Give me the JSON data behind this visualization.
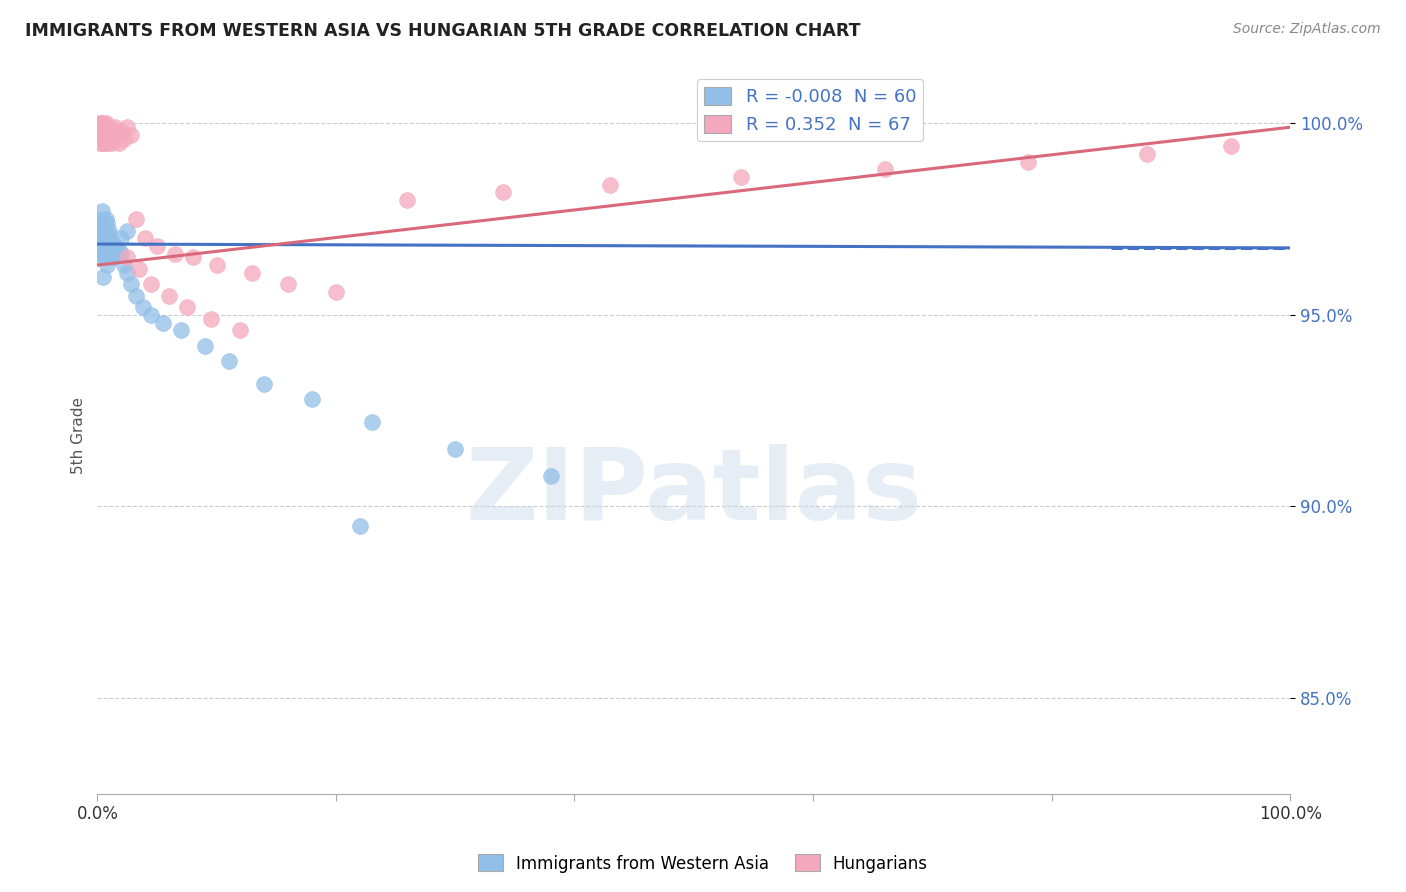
{
  "title": "IMMIGRANTS FROM WESTERN ASIA VS HUNGARIAN 5TH GRADE CORRELATION CHART",
  "source": "Source: ZipAtlas.com",
  "ylabel": "5th Grade",
  "watermark": "ZIPatlas",
  "blue_R": -0.008,
  "blue_N": 60,
  "pink_R": 0.352,
  "pink_N": 67,
  "blue_label": "Immigrants from Western Asia",
  "pink_label": "Hungarians",
  "blue_color": "#92bfe8",
  "pink_color": "#f4a8bd",
  "blue_line_color": "#4472c4",
  "pink_line_color": "#d9687a",
  "xlim": [
    0.0,
    1.0
  ],
  "ylim": [
    0.825,
    1.012
  ],
  "blue_scatter_x": [
    0.001,
    0.001,
    0.002,
    0.002,
    0.002,
    0.003,
    0.003,
    0.003,
    0.004,
    0.004,
    0.004,
    0.004,
    0.005,
    0.005,
    0.005,
    0.006,
    0.006,
    0.006,
    0.007,
    0.007,
    0.007,
    0.007,
    0.008,
    0.008,
    0.008,
    0.009,
    0.009,
    0.01,
    0.01,
    0.011,
    0.011,
    0.012,
    0.013,
    0.014,
    0.015,
    0.016,
    0.018,
    0.02,
    0.022,
    0.025,
    0.028,
    0.032,
    0.038,
    0.045,
    0.055,
    0.07,
    0.09,
    0.11,
    0.14,
    0.18,
    0.23,
    0.3,
    0.22,
    0.38,
    0.005,
    0.008,
    0.01,
    0.015,
    0.02,
    0.025
  ],
  "blue_scatter_y": [
    0.975,
    0.972,
    0.97,
    0.967,
    0.974,
    0.968,
    0.972,
    0.965,
    0.971,
    0.968,
    0.974,
    0.977,
    0.966,
    0.97,
    0.973,
    0.965,
    0.968,
    0.972,
    0.966,
    0.97,
    0.973,
    0.975,
    0.967,
    0.971,
    0.974,
    0.968,
    0.971,
    0.969,
    0.972,
    0.966,
    0.97,
    0.968,
    0.966,
    0.965,
    0.968,
    0.966,
    0.967,
    0.966,
    0.963,
    0.961,
    0.958,
    0.955,
    0.952,
    0.95,
    0.948,
    0.946,
    0.942,
    0.938,
    0.932,
    0.928,
    0.922,
    0.915,
    0.895,
    0.908,
    0.96,
    0.963,
    0.965,
    0.968,
    0.97,
    0.972
  ],
  "pink_scatter_x": [
    0.001,
    0.001,
    0.001,
    0.002,
    0.002,
    0.002,
    0.002,
    0.003,
    0.003,
    0.003,
    0.003,
    0.004,
    0.004,
    0.004,
    0.004,
    0.005,
    0.005,
    0.005,
    0.005,
    0.006,
    0.006,
    0.006,
    0.007,
    0.007,
    0.007,
    0.008,
    0.008,
    0.008,
    0.009,
    0.009,
    0.01,
    0.01,
    0.011,
    0.012,
    0.013,
    0.014,
    0.015,
    0.016,
    0.018,
    0.02,
    0.022,
    0.025,
    0.028,
    0.032,
    0.04,
    0.05,
    0.065,
    0.08,
    0.1,
    0.13,
    0.16,
    0.2,
    0.26,
    0.34,
    0.43,
    0.54,
    0.66,
    0.78,
    0.88,
    0.95,
    0.025,
    0.035,
    0.045,
    0.06,
    0.075,
    0.095,
    0.12
  ],
  "pink_scatter_y": [
    0.998,
    0.996,
    1.0,
    0.997,
    0.999,
    0.995,
    0.998,
    0.996,
    0.999,
    0.997,
    1.0,
    0.995,
    0.998,
    0.996,
    0.999,
    0.997,
    1.0,
    0.995,
    0.998,
    0.996,
    0.999,
    0.997,
    0.995,
    0.998,
    1.0,
    0.996,
    0.999,
    0.997,
    0.995,
    0.998,
    0.996,
    0.999,
    0.997,
    0.995,
    0.998,
    0.996,
    0.999,
    0.997,
    0.995,
    0.998,
    0.996,
    0.999,
    0.997,
    0.975,
    0.97,
    0.968,
    0.966,
    0.965,
    0.963,
    0.961,
    0.958,
    0.956,
    0.98,
    0.982,
    0.984,
    0.986,
    0.988,
    0.99,
    0.992,
    0.994,
    0.965,
    0.962,
    0.958,
    0.955,
    0.952,
    0.949,
    0.946
  ],
  "blue_line_x": [
    0.0,
    1.0
  ],
  "blue_line_y": [
    0.9685,
    0.9675
  ],
  "pink_line_x": [
    0.0,
    1.0
  ],
  "pink_line_y": [
    0.963,
    0.999
  ],
  "ytick_values": [
    0.85,
    0.9,
    0.95,
    1.0
  ],
  "ytick_labels": [
    "85.0%",
    "90.0%",
    "95.0%",
    "100.0%"
  ],
  "xtick_values": [
    0.0,
    0.2,
    0.4,
    0.6,
    0.8,
    1.0
  ],
  "xtick_labels_show": {
    "0.0": "0.0%",
    "1.0": "100.0%"
  }
}
